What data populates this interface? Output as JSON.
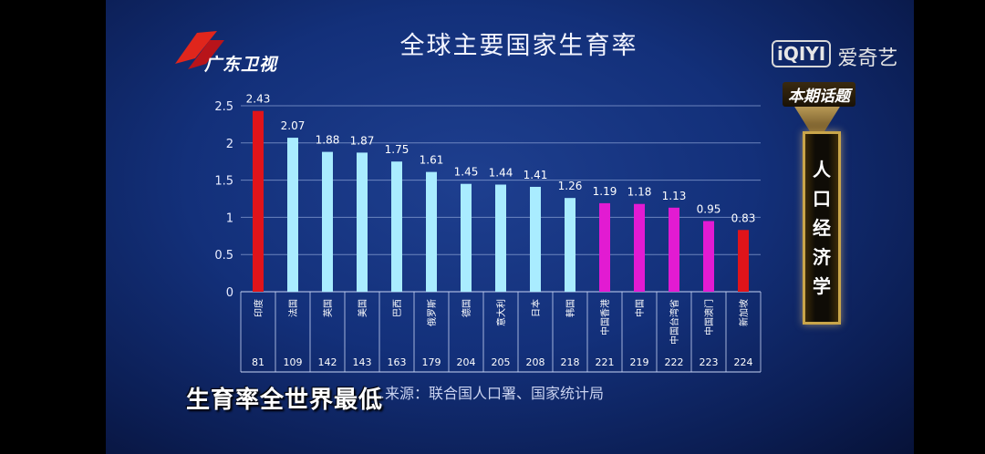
{
  "chart_data": {
    "type": "bar",
    "title": "全球主要国家生育率",
    "categories": [
      "印度",
      "法国",
      "英国",
      "美国",
      "巴西",
      "俄罗斯",
      "德国",
      "意大利",
      "日本",
      "韩国",
      "中国香港",
      "中国",
      "中国台湾省",
      "中国澳门",
      "新加坡"
    ],
    "values": [
      2.43,
      2.07,
      1.88,
      1.87,
      1.75,
      1.61,
      1.45,
      1.44,
      1.41,
      1.26,
      1.19,
      1.18,
      1.13,
      0.95,
      0.83
    ],
    "value_labels": [
      "2.43",
      "2.07",
      "1.88",
      "1.87",
      "1.75",
      "1.61",
      "1.45",
      "1.44",
      "1.41",
      "1.26",
      "1.19",
      "1.18",
      "1.13",
      "0.95",
      "0.83"
    ],
    "ranks": [
      "81",
      "109",
      "142",
      "143",
      "163",
      "179",
      "204",
      "205",
      "208",
      "218",
      "221",
      "219",
      "222",
      "223",
      "224"
    ],
    "bar_colors": [
      "#e0141a",
      "#a9ecff",
      "#a9ecff",
      "#a9ecff",
      "#a9ecff",
      "#a9ecff",
      "#a9ecff",
      "#a9ecff",
      "#a9ecff",
      "#a9ecff",
      "#e21bd2",
      "#e21bd2",
      "#e21bd2",
      "#e21bd2",
      "#e0141a"
    ],
    "ylim": [
      0,
      2.5
    ],
    "yticks": [
      "0",
      "0.5",
      "1",
      "1.5",
      "2",
      "2.5"
    ],
    "grid": true,
    "xlabel": "",
    "ylabel": ""
  },
  "logo": {
    "channel": "广东卫视",
    "platform_box": "iQIYI",
    "platform": "爱奇艺"
  },
  "topic": {
    "label": "本期话题",
    "chars": [
      "人",
      "口",
      "经",
      "济",
      "学"
    ]
  },
  "source": "…来源：联合国人口署、国家统计局",
  "caption": "生育率全世界最低",
  "colors": {
    "accent_red": "#e0141a",
    "accent_cyan": "#a9ecff",
    "accent_magenta": "#e21bd2",
    "gold": "#c9a54a"
  }
}
